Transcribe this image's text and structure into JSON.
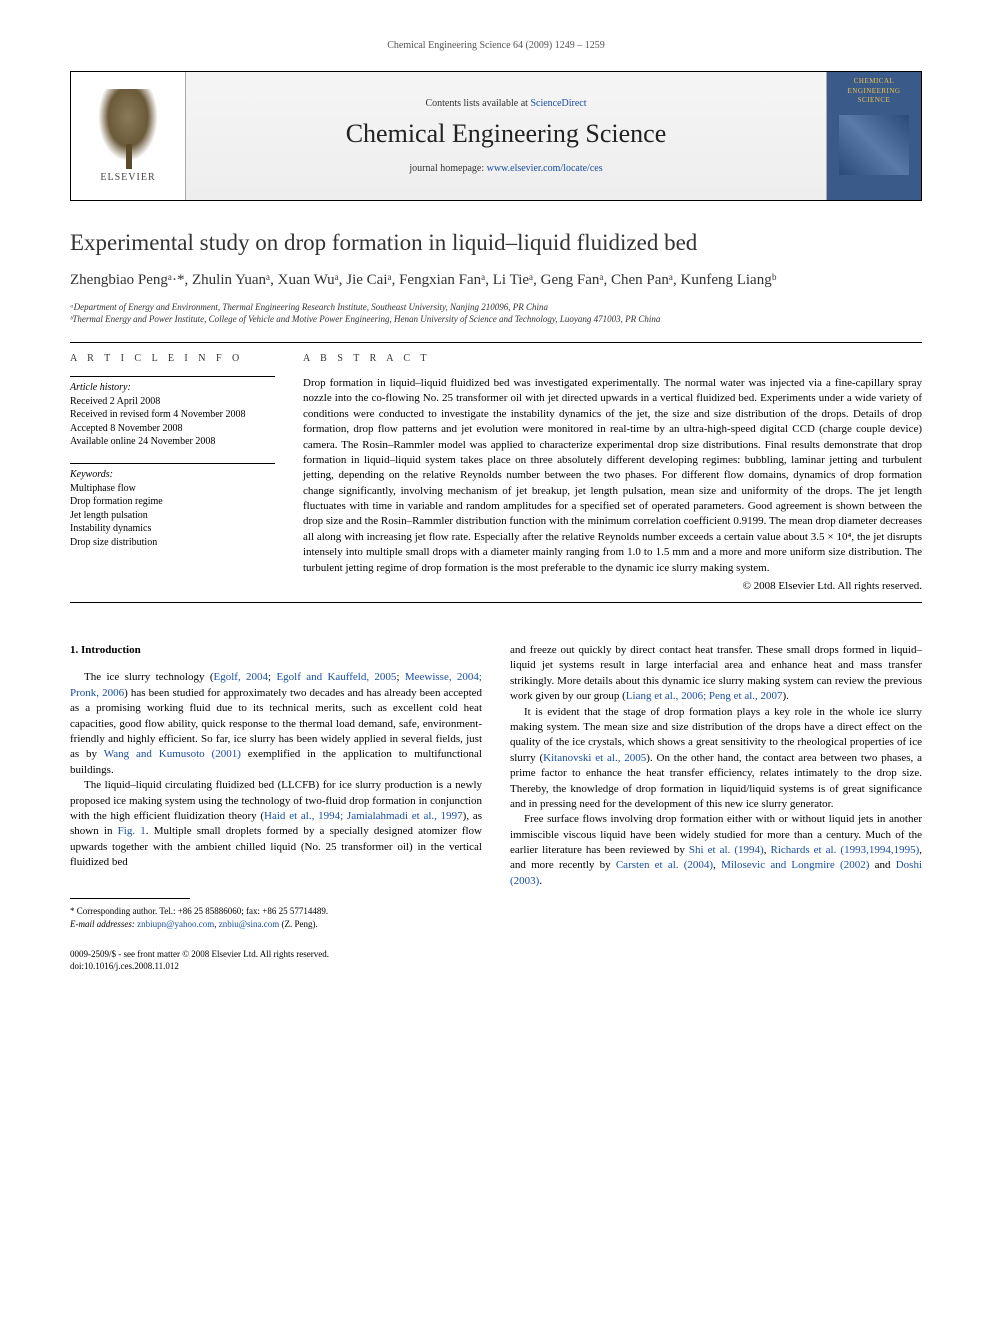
{
  "runningHeader": "Chemical Engineering Science 64 (2009) 1249 – 1259",
  "banner": {
    "publisherLabel": "ELSEVIER",
    "contentsPrefix": "Contents lists available at ",
    "contentsLink": "ScienceDirect",
    "journalName": "Chemical Engineering Science",
    "homepagePrefix": "journal homepage: ",
    "homepageLink": "www.elsevier.com/locate/ces",
    "coverTitleA": "CHEMICAL",
    "coverTitleB": "ENGINEERING",
    "coverTitleC": "SCIENCE"
  },
  "article": {
    "title": "Experimental study on drop formation in liquid–liquid fluidized bed",
    "authorsLine": "Zhengbiao Pengᵃ·*, Zhulin Yuanᵃ, Xuan Wuᵃ, Jie Caiᵃ, Fengxian Fanᵃ, Li Tieᵃ, Geng Fanᵃ, Chen Panᵃ, Kunfeng Liangᵇ",
    "affA": "ᵃDepartment of Energy and Environment, Thermal Engineering Research Institute, Southeast University, Nanjing 210096, PR China",
    "affB": "ᵇThermal Energy and Power Institute, College of Vehicle and Motive Power Engineering, Henan University of Science and Technology, Luoyang 471003, PR China"
  },
  "meta": {
    "infoHeading": "A R T I C L E   I N F O",
    "historyLabel": "Article history:",
    "history": [
      "Received 2 April 2008",
      "Received in revised form 4 November 2008",
      "Accepted 8 November 2008",
      "Available online 24 November 2008"
    ],
    "keywordsLabel": "Keywords:",
    "keywords": [
      "Multiphase flow",
      "Drop formation regime",
      "Jet length pulsation",
      "Instability dynamics",
      "Drop size distribution"
    ]
  },
  "abstract": {
    "heading": "A B S T R A C T",
    "text": "Drop formation in liquid–liquid fluidized bed was investigated experimentally. The normal water was injected via a fine-capillary spray nozzle into the co-flowing No. 25 transformer oil with jet directed upwards in a vertical fluidized bed. Experiments under a wide variety of conditions were conducted to investigate the instability dynamics of the jet, the size and size distribution of the drops. Details of drop formation, drop flow patterns and jet evolution were monitored in real-time by an ultra-high-speed digital CCD (charge couple device) camera. The Rosin–Rammler model was applied to characterize experimental drop size distributions. Final results demonstrate that drop formation in liquid–liquid system takes place on three absolutely different developing regimes: bubbling, laminar jetting and turbulent jetting, depending on the relative Reynolds number between the two phases. For different flow domains, dynamics of drop formation change significantly, involving mechanism of jet breakup, jet length pulsation, mean size and uniformity of the drops. The jet length fluctuates with time in variable and random amplitudes for a specified set of operated parameters. Good agreement is shown between the drop size and the Rosin–Rammler distribution function with the minimum correlation coefficient 0.9199. The mean drop diameter decreases all along with increasing jet flow rate. Especially after the relative Reynolds number exceeds a certain value about 3.5 × 10⁴, the jet disrupts intensely into multiple small drops with a diameter mainly ranging from 1.0 to 1.5 mm and a more and more uniform size distribution. The turbulent jetting regime of drop formation is the most preferable to the dynamic ice slurry making system.",
    "copyright": "© 2008 Elsevier Ltd. All rights reserved."
  },
  "body": {
    "sectionHeading": "1. Introduction",
    "leftParas": [
      {
        "plain": "The ice slurry technology (",
        "ref": "Egolf, 2004",
        "after": "; ",
        "ref2": "Egolf and Kauffeld, 2005",
        "after2": "; ",
        "ref3": "Meewisse, 2004; Pronk, 2006",
        "tail": ") has been studied for approximately two decades and has already been accepted as a promising working fluid due to its technical merits, such as excellent cold heat capacities, good flow ability, quick response to the thermal load demand, safe, environment-friendly and highly efficient. So far, ice slurry has been widely applied in several fields, just as by ",
        "ref4": "Wang and Kumusoto (2001)",
        "tail2": " exemplified in the application to multifunctional buildings."
      },
      {
        "plain": "The liquid–liquid circulating fluidized bed (LLCFB) for ice slurry production is a newly proposed ice making system using the technology of two-fluid drop formation in conjunction with the high efficient fluidization theory (",
        "ref": "Haid et al., 1994; Jamialahmadi et al., 1997",
        "tail": "), as shown in ",
        "ref2": "Fig. 1",
        "tail2": ". Multiple small droplets formed by a specially designed atomizer flow upwards together with the ambient chilled liquid (No. 25 transformer oil) in the vertical fluidized bed"
      }
    ],
    "rightParas": [
      {
        "plain": "and freeze out quickly by direct contact heat transfer. These small drops formed in liquid–liquid jet systems result in large interfacial area and enhance heat and mass transfer strikingly. More details about this dynamic ice slurry making system can review the previous work given by our group (",
        "ref": "Liang et al., 2006; Peng et al., 2007",
        "tail": ")."
      },
      {
        "plain": "It is evident that the stage of drop formation plays a key role in the whole ice slurry making system. The mean size and size distribution of the drops have a direct effect on the quality of the ice crystals, which shows a great sensitivity to the rheological properties of ice slurry (",
        "ref": "Kitanovski et al., 2005",
        "tail": "). On the other hand, the contact area between two phases, a prime factor to enhance the heat transfer efficiency, relates intimately to the drop size. Thereby, the knowledge of drop formation in liquid/liquid systems is of great significance and in pressing need for the development of this new ice slurry generator."
      },
      {
        "plain": "Free surface flows involving drop formation either with or without liquid jets in another immiscible viscous liquid have been widely studied for more than a century. Much of the earlier literature has been reviewed by ",
        "ref": "Shi et al. (1994)",
        "after": ", ",
        "ref2": "Richards et al. (1993,1994,1995)",
        "after2": ", and more recently by ",
        "ref3": "Carsten et al. (2004)",
        "after3": ", ",
        "ref4": "Milosevic and Longmire (2002)",
        "after4": " and ",
        "ref5": "Doshi (2003)",
        "tail": "."
      }
    ]
  },
  "footnote": {
    "corresponding": "* Corresponding author. Tel.: +86 25 85886060; fax: +86 25 57714489.",
    "emailLabel": "E-mail addresses: ",
    "email1": "znbiupn@yahoo.com",
    "emailSep": ", ",
    "email2": "znbiu@sina.com",
    "emailTail": " (Z. Peng)."
  },
  "footer": {
    "line1": "0009-2509/$ - see front matter © 2008 Elsevier Ltd. All rights reserved.",
    "line2": "doi:10.1016/j.ces.2008.11.012"
  },
  "colors": {
    "linkColor": "#1a4fa0",
    "textColor": "#000000",
    "bannerBg": "#f5f5f5",
    "coverBg": "#3a5a8a"
  },
  "typography": {
    "bodyFontSize": 11,
    "titleFontSize": 23,
    "authorsFontSize": 15,
    "journalNameFontSize": 26,
    "metaFontSize": 10,
    "footnoteFontSize": 9
  }
}
